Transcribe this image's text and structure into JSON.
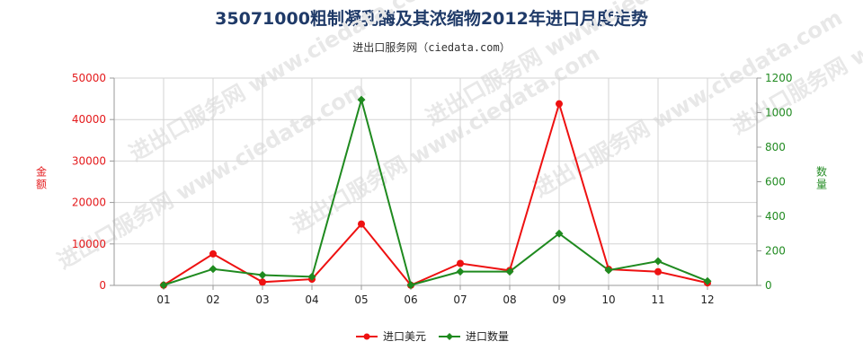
{
  "title": "35071000粗制凝乳酶及其浓缩物2012年进口月度走势",
  "subtitle": "进出口服务网（ciedata.com）",
  "watermark": "进出口服务网 www.ciedata.com",
  "chart_data": {
    "type": "line",
    "categories": [
      "01",
      "02",
      "03",
      "04",
      "05",
      "06",
      "07",
      "08",
      "09",
      "10",
      "11",
      "12"
    ],
    "left_axis": {
      "label": "金额",
      "ylim": [
        0,
        50000
      ],
      "ticks": [
        "0",
        "10000",
        "20000",
        "30000",
        "40000",
        "50000"
      ],
      "color": "#e41a1c"
    },
    "right_axis": {
      "label": "数量",
      "ylim": [
        0,
        1200
      ],
      "ticks": [
        "0",
        "200",
        "400",
        "600",
        "800",
        "1000",
        "1200"
      ],
      "color": "#228b22"
    },
    "series": [
      {
        "name": "进口美元",
        "axis": "left",
        "color": "#ee1111",
        "values": [
          50,
          7600,
          800,
          1500,
          14800,
          50,
          5300,
          3600,
          43800,
          3900,
          3300,
          600
        ]
      },
      {
        "name": "进口数量",
        "axis": "right",
        "color": "#1f8a1f",
        "values": [
          2,
          95,
          60,
          50,
          1075,
          2,
          80,
          80,
          300,
          88,
          140,
          25
        ]
      }
    ],
    "grid": true,
    "legend_position": "bottom-center"
  }
}
